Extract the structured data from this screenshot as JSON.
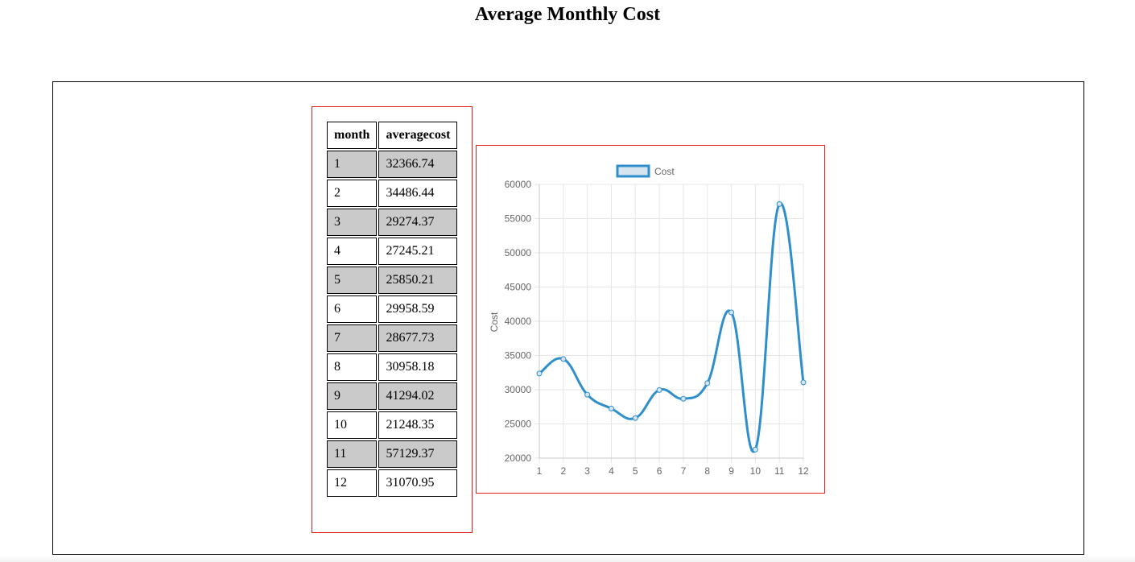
{
  "page": {
    "title": "Average Monthly Cost"
  },
  "table": {
    "headers": [
      "month",
      "averagecost"
    ],
    "rows": [
      [
        "1",
        "32366.74"
      ],
      [
        "2",
        "34486.44"
      ],
      [
        "3",
        "29274.37"
      ],
      [
        "4",
        "27245.21"
      ],
      [
        "5",
        "25850.21"
      ],
      [
        "6",
        "29958.59"
      ],
      [
        "7",
        "28677.73"
      ],
      [
        "8",
        "30958.18"
      ],
      [
        "9",
        "41294.02"
      ],
      [
        "10",
        "21248.35"
      ],
      [
        "11",
        "57129.37"
      ],
      [
        "12",
        "31070.95"
      ]
    ]
  },
  "colors": {
    "frame_border": "#e31b1b",
    "odd_row_fill": "#cacaca",
    "series_line": "#2e8fcc",
    "legend_fill": "#d5e4ef",
    "grid": "#e6e6e6",
    "axis_text": "#666666"
  },
  "chart_data": {
    "type": "line",
    "x": [
      "1",
      "2",
      "3",
      "4",
      "5",
      "6",
      "7",
      "8",
      "9",
      "10",
      "11",
      "12"
    ],
    "series": [
      {
        "name": "Cost",
        "values": [
          32366.74,
          34486.44,
          29274.37,
          27245.21,
          25850.21,
          29958.59,
          28677.73,
          30958.18,
          41294.02,
          21248.35,
          57129.37,
          31070.95
        ]
      }
    ],
    "ylabel": "Cost",
    "xlabel": "",
    "ylim": [
      20000,
      60000
    ],
    "yticks": [
      "20000",
      "25000",
      "30000",
      "35000",
      "40000",
      "45000",
      "50000",
      "55000",
      "60000"
    ],
    "legend": "top-center",
    "grid": true,
    "smooth": true
  }
}
